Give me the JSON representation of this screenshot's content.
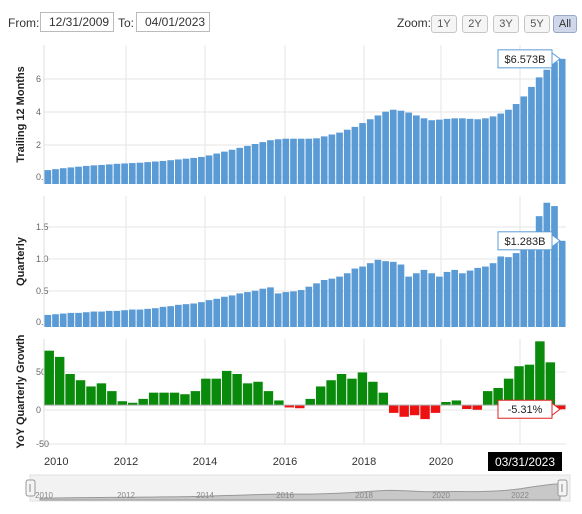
{
  "toolbar": {
    "from_label": "From:",
    "from_value": "12/31/2009",
    "to_label": "To:",
    "to_value": "04/01/2023",
    "zoom_label": "Zoom:",
    "zoom_buttons": [
      "1Y",
      "2Y",
      "3Y",
      "5Y",
      "All"
    ],
    "active_zoom": "All"
  },
  "colors": {
    "bar_blue": "#5b9bd5",
    "bar_green": "#0a8a0a",
    "bar_red": "#ee1111",
    "highlight_box": "#000000"
  },
  "chart_data": [
    {
      "type": "bar",
      "ylabel": "Trailing 12 Months",
      "yticks": [
        "0.0",
        "2",
        "4",
        "6"
      ],
      "ylim": [
        0,
        7.3
      ],
      "callout": "$6.573B",
      "values": [
        0.73,
        0.78,
        0.83,
        0.87,
        0.91,
        0.95,
        0.98,
        1.0,
        1.03,
        1.06,
        1.08,
        1.1,
        1.12,
        1.15,
        1.18,
        1.21,
        1.25,
        1.29,
        1.33,
        1.37,
        1.42,
        1.5,
        1.6,
        1.7,
        1.8,
        1.9,
        2.0,
        2.1,
        2.2,
        2.3,
        2.35,
        2.38,
        2.38,
        2.38,
        2.38,
        2.4,
        2.5,
        2.6,
        2.7,
        2.85,
        3.0,
        3.2,
        3.4,
        3.6,
        3.8,
        3.9,
        3.85,
        3.75,
        3.6,
        3.45,
        3.35,
        3.38,
        3.42,
        3.45,
        3.45,
        3.42,
        3.4,
        3.45,
        3.55,
        3.7,
        3.9,
        4.2,
        4.6,
        5.1,
        5.6,
        6.0,
        6.4,
        6.573
      ]
    },
    {
      "type": "bar",
      "ylabel": "Quarterly",
      "yticks": [
        "0.0",
        "0.5",
        "1.0",
        "1.5"
      ],
      "ylim": [
        0,
        1.95
      ],
      "callout": "$1.283B",
      "values": [
        0.18,
        0.19,
        0.2,
        0.21,
        0.21,
        0.22,
        0.23,
        0.23,
        0.24,
        0.24,
        0.25,
        0.26,
        0.26,
        0.27,
        0.28,
        0.3,
        0.31,
        0.33,
        0.34,
        0.35,
        0.37,
        0.4,
        0.42,
        0.45,
        0.47,
        0.5,
        0.52,
        0.54,
        0.57,
        0.59,
        0.5,
        0.52,
        0.53,
        0.55,
        0.6,
        0.65,
        0.7,
        0.72,
        0.75,
        0.8,
        0.87,
        0.9,
        0.95,
        1.0,
        0.98,
        0.97,
        0.93,
        0.75,
        0.8,
        0.85,
        0.8,
        0.75,
        0.82,
        0.85,
        0.8,
        0.84,
        0.88,
        0.9,
        0.95,
        1.05,
        1.04,
        1.1,
        1.2,
        1.3,
        1.65,
        1.85,
        1.8,
        1.283
      ]
    },
    {
      "type": "bar",
      "ylabel": "YoY Quarterly Growth",
      "yticks": [
        "-50",
        "0",
        "50"
      ],
      "ylim": [
        -50,
        85
      ],
      "callout": "-5.31%",
      "values": [
        70,
        62,
        40,
        32,
        24,
        28,
        18,
        5,
        3,
        8,
        16,
        16,
        16,
        14,
        18,
        34,
        34,
        44,
        40,
        28,
        30,
        18,
        6,
        -3,
        -4,
        8,
        24,
        32,
        40,
        34,
        42,
        30,
        16,
        -10,
        -15,
        -13,
        -18,
        -10,
        4,
        6,
        -5,
        -6,
        18,
        22,
        34,
        50,
        52,
        82,
        55,
        -5.31
      ]
    }
  ],
  "x_axis": {
    "ticks": [
      "2010",
      "2012",
      "2014",
      "2016",
      "2018",
      "2020",
      "2022"
    ],
    "highlight": "03/31/2023"
  },
  "navigator": {
    "ticks": [
      "2010",
      "2012",
      "2014",
      "2016",
      "2018",
      "2020",
      "2022"
    ]
  }
}
